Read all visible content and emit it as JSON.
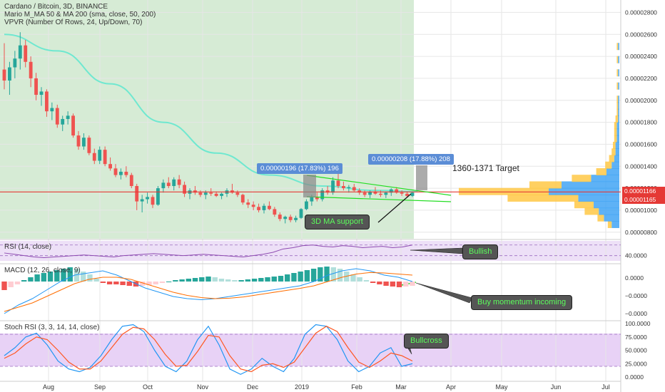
{
  "legend": {
    "main_title": "Cardano / Bitcoin, 3D, BINANCE",
    "ma_study": "Mario M_MA 50 & MA 200 (sma, close, 50, 200)",
    "vpvr_study": "VPVR (Number Of Rows, 24, Up/Down, 70)",
    "rsi_title": "RSI (14, close)",
    "macd_title": "MACD (12, 26, close, 9)",
    "stoch_title": "Stoch RSI (3, 3, 14, 14, close)"
  },
  "price_labels": {
    "current": "0.00001166",
    "second": "0.00001165"
  },
  "annotations": {
    "measure_left": "0.00000196 (17.83%) 196",
    "measure_right": "0.00000208 (17.88%) 208",
    "target": "1360-1371 Target",
    "ma_support": "3D MA support",
    "rsi_callout": "Bullish",
    "macd_callout": "Buy momentum incoming",
    "stoch_callout": "Bullcross"
  },
  "colors": {
    "up": "#26a69a",
    "down": "#ef5350",
    "ma50": "#6fe8d0",
    "price_line": "#e53935",
    "rsi_line": "#8e4bb1",
    "macd_line": "#2196f3",
    "signal_line": "#ff6d00",
    "stoch_k": "#2196f3",
    "stoch_d": "#ff5722",
    "vp_up": "#42a5f5",
    "vp_down": "#ffc845"
  },
  "chart_data": [
    {
      "type": "candlestick",
      "title": "Cardano / Bitcoin, 3D, BINANCE",
      "x_tick_labels": [
        "Aug",
        "Sep",
        "Oct",
        "Nov",
        "Dec",
        "2019",
        "Feb",
        "Mar",
        "Apr",
        "May",
        "Jun",
        "Jul"
      ],
      "y_tick_labels": [
        "0.00000800",
        "0.00001000",
        "0.00001200",
        "0.00001400",
        "0.00001600",
        "0.00001800",
        "0.00002000",
        "0.00002200",
        "0.00002400",
        "0.00002600",
        "0.00002800"
      ],
      "ylim": [
        7.4e-06,
        2.9e-05
      ],
      "candles": [
        [
          2.28,
          2.52,
          2.1,
          2.18
        ],
        [
          2.18,
          2.35,
          2.05,
          2.3
        ],
        [
          2.3,
          2.45,
          2.2,
          2.38
        ],
        [
          2.38,
          2.62,
          2.28,
          2.5
        ],
        [
          2.5,
          2.55,
          2.3,
          2.35
        ],
        [
          2.35,
          2.4,
          2.12,
          2.2
        ],
        [
          2.2,
          2.25,
          2.0,
          2.05
        ],
        [
          2.05,
          2.12,
          1.95,
          2.08
        ],
        [
          2.08,
          2.1,
          1.85,
          1.9
        ],
        [
          1.9,
          1.98,
          1.82,
          1.93
        ],
        [
          1.93,
          1.96,
          1.75,
          1.78
        ],
        [
          1.78,
          1.86,
          1.72,
          1.83
        ],
        [
          1.83,
          1.9,
          1.78,
          1.86
        ],
        [
          1.86,
          1.88,
          1.66,
          1.68
        ],
        [
          1.68,
          1.72,
          1.55,
          1.58
        ],
        [
          1.58,
          1.7,
          1.55,
          1.66
        ],
        [
          1.66,
          1.68,
          1.5,
          1.52
        ],
        [
          1.52,
          1.56,
          1.42,
          1.45
        ],
        [
          1.45,
          1.58,
          1.42,
          1.55
        ],
        [
          1.55,
          1.58,
          1.4,
          1.42
        ],
        [
          1.42,
          1.48,
          1.36,
          1.38
        ],
        [
          1.38,
          1.42,
          1.3,
          1.32
        ],
        [
          1.32,
          1.38,
          1.28,
          1.35
        ],
        [
          1.35,
          1.4,
          1.3,
          1.32
        ],
        [
          1.32,
          1.34,
          1.2,
          1.22
        ],
        [
          1.22,
          1.24,
          1.0,
          1.08
        ],
        [
          1.08,
          1.14,
          0.98,
          1.1
        ],
        [
          1.1,
          1.16,
          1.06,
          1.12
        ],
        [
          1.12,
          1.14,
          1.02,
          1.05
        ],
        [
          1.05,
          1.22,
          1.04,
          1.2
        ],
        [
          1.2,
          1.28,
          1.16,
          1.25
        ],
        [
          1.25,
          1.3,
          1.2,
          1.22
        ],
        [
          1.22,
          1.3,
          1.18,
          1.28
        ],
        [
          1.28,
          1.32,
          1.2,
          1.23
        ],
        [
          1.23,
          1.26,
          1.12,
          1.15
        ],
        [
          1.15,
          1.2,
          1.1,
          1.18
        ],
        [
          1.18,
          1.22,
          1.14,
          1.16
        ],
        [
          1.16,
          1.18,
          1.12,
          1.14
        ],
        [
          1.14,
          1.18,
          1.1,
          1.16
        ],
        [
          1.16,
          1.2,
          1.13,
          1.15
        ],
        [
          1.15,
          1.17,
          1.12,
          1.13
        ],
        [
          1.13,
          1.16,
          1.1,
          1.15
        ],
        [
          1.15,
          1.2,
          1.12,
          1.18
        ],
        [
          1.18,
          1.24,
          1.15,
          1.16
        ],
        [
          1.16,
          1.18,
          1.12,
          1.14
        ],
        [
          1.14,
          1.15,
          1.05,
          1.07
        ],
        [
          1.07,
          1.1,
          1.02,
          1.05
        ],
        [
          1.05,
          1.08,
          1.0,
          1.03
        ],
        [
          1.03,
          1.06,
          0.98,
          1.0
        ],
        [
          1.0,
          1.06,
          0.97,
          1.04
        ],
        [
          1.04,
          1.08,
          1.0,
          1.01
        ],
        [
          1.01,
          1.03,
          0.94,
          0.96
        ],
        [
          0.96,
          0.98,
          0.9,
          0.92
        ],
        [
          0.92,
          0.95,
          0.88,
          0.94
        ],
        [
          0.94,
          0.96,
          0.89,
          0.91
        ],
        [
          0.91,
          0.95,
          0.89,
          0.93
        ],
        [
          0.93,
          1.02,
          0.92,
          1.01
        ],
        [
          1.01,
          1.1,
          1.0,
          1.08
        ],
        [
          1.08,
          1.14,
          1.04,
          1.12
        ],
        [
          1.12,
          1.16,
          1.08,
          1.1
        ],
        [
          1.1,
          1.2,
          1.08,
          1.18
        ],
        [
          1.18,
          1.22,
          1.14,
          1.16
        ],
        [
          1.16,
          1.3,
          1.14,
          1.27
        ],
        [
          1.27,
          1.33,
          1.2,
          1.22
        ],
        [
          1.22,
          1.26,
          1.18,
          1.2
        ],
        [
          1.2,
          1.23,
          1.16,
          1.21
        ],
        [
          1.21,
          1.24,
          1.17,
          1.18
        ],
        [
          1.18,
          1.2,
          1.14,
          1.16
        ],
        [
          1.16,
          1.18,
          1.12,
          1.14
        ],
        [
          1.14,
          1.18,
          1.11,
          1.17
        ],
        [
          1.17,
          1.21,
          1.14,
          1.15
        ],
        [
          1.15,
          1.18,
          1.12,
          1.14
        ],
        [
          1.14,
          1.17,
          1.11,
          1.16
        ],
        [
          1.16,
          1.2,
          1.13,
          1.19
        ],
        [
          1.19,
          1.21,
          1.15,
          1.16
        ],
        [
          1.16,
          1.18,
          1.13,
          1.15
        ],
        [
          1.15,
          1.17,
          1.12,
          1.13
        ],
        [
          1.13,
          1.17,
          1.12,
          1.16
        ]
      ],
      "ma50": [
        [
          0,
          2.6
        ],
        [
          10,
          2.45
        ],
        [
          20,
          2.15
        ],
        [
          30,
          1.8
        ],
        [
          40,
          1.52
        ],
        [
          50,
          1.32
        ],
        [
          60,
          1.22
        ],
        [
          70,
          1.18
        ],
        [
          78,
          1.17
        ]
      ],
      "current_price": 1.166e-05,
      "volume_profile": [
        {
          "price": 8.7e-06,
          "up": 0.6,
          "down": 0.3
        },
        {
          "price": 9.3e-06,
          "up": 1.2,
          "down": 0.5
        },
        {
          "price": 9.9e-06,
          "up": 1.6,
          "down": 1.1
        },
        {
          "price": 1.05e-05,
          "up": 2.0,
          "down": 1.5
        },
        {
          "price": 1.11e-05,
          "up": 3.2,
          "down": 5.5
        },
        {
          "price": 1.17e-05,
          "up": 5.5,
          "down": 7.0
        },
        {
          "price": 1.23e-05,
          "up": 4.5,
          "down": 2.5
        },
        {
          "price": 1.29e-05,
          "up": 2.2,
          "down": 1.5
        },
        {
          "price": 1.35e-05,
          "up": 1.0,
          "down": 0.8
        },
        {
          "price": 1.41e-05,
          "up": 0.6,
          "down": 0.5
        },
        {
          "price": 1.47e-05,
          "up": 0.4,
          "down": 0.4
        },
        {
          "price": 1.53e-05,
          "up": 0.3,
          "down": 0.3
        },
        {
          "price": 1.59e-05,
          "up": 0.3,
          "down": 0.2
        },
        {
          "price": 1.65e-05,
          "up": 0.2,
          "down": 0.2
        },
        {
          "price": 1.71e-05,
          "up": 0.2,
          "down": 0.2
        },
        {
          "price": 1.77e-05,
          "up": 0.2,
          "down": 0.2
        },
        {
          "price": 1.83e-05,
          "up": 0.1,
          "down": 0.2
        },
        {
          "price": 1.89e-05,
          "up": 0.1,
          "down": 0.1
        },
        {
          "price": 1.95e-05,
          "up": 0.1,
          "down": 0.1
        },
        {
          "price": 2.01e-05,
          "up": 0.1,
          "down": 0.1
        },
        {
          "price": 2.13e-05,
          "up": 0.1,
          "down": 0.1
        },
        {
          "price": 2.25e-05,
          "up": 0.1,
          "down": 0.1
        },
        {
          "price": 2.37e-05,
          "up": 0.1,
          "down": 0.1
        },
        {
          "price": 2.49e-05,
          "up": 0.1,
          "down": 0.1
        }
      ]
    },
    {
      "type": "line",
      "title": "RSI (14, close)",
      "y_tick_labels": [
        "40.0000"
      ],
      "series": [
        {
          "values": [
            44,
            42,
            40,
            38,
            37,
            38,
            39,
            40,
            41,
            40,
            39,
            38,
            40,
            41,
            42,
            43,
            42,
            41,
            40,
            41,
            42,
            41,
            40,
            39,
            38,
            40,
            42,
            45,
            50,
            52,
            55,
            56,
            54,
            53,
            55,
            54,
            52,
            53,
            54,
            52,
            53,
            56
          ]
        }
      ]
    },
    {
      "type": "bar",
      "title": "MACD (12, 26, close, 9)",
      "y_tick_labels": [
        "0.0000",
        "−0.0000",
        "−0.0000"
      ],
      "histogram": [
        -0.6,
        -0.4,
        -0.2,
        0.1,
        0.3,
        0.5,
        0.6,
        0.7,
        0.8,
        0.9,
        1.0,
        0.9,
        0.7,
        0.5,
        0.2,
        -0.1,
        -0.2,
        -0.2,
        -0.25,
        -0.3,
        -0.35,
        -0.3,
        -0.25,
        -0.2,
        -0.1,
        0.0,
        0.1,
        0.15,
        0.2,
        0.25,
        0.3,
        0.35,
        0.3,
        0.2,
        0.15,
        0.1,
        0.1,
        0.15,
        0.2,
        0.25,
        0.3,
        0.35,
        0.4,
        0.5,
        0.6,
        0.7,
        0.8,
        0.9,
        1.0,
        1.05,
        1.0,
        0.9,
        0.7,
        0.5,
        0.3,
        0.1,
        -0.1,
        -0.2,
        -0.3,
        -0.35,
        -0.4,
        -0.35,
        -0.3
      ],
      "series": [
        {
          "values": [
            -1.0,
            -0.6,
            -0.3,
            0.1,
            0.5,
            0.8,
            0.9,
            1.0,
            0.8,
            0.5,
            0.2,
            0.0,
            -0.2,
            -0.3,
            -0.35,
            -0.3,
            -0.2,
            -0.1,
            0.0,
            0.1,
            0.2,
            0.3,
            0.5,
            0.8,
            1.0,
            1.1,
            1.0,
            0.8,
            0.7,
            0.5
          ]
        },
        {
          "values": [
            -0.9,
            -0.7,
            -0.5,
            -0.2,
            0.1,
            0.4,
            0.6,
            0.7,
            0.7,
            0.6,
            0.4,
            0.2,
            0.0,
            -0.15,
            -0.25,
            -0.3,
            -0.28,
            -0.22,
            -0.12,
            -0.02,
            0.08,
            0.18,
            0.3,
            0.5,
            0.7,
            0.85,
            0.92,
            0.9,
            0.85,
            0.8
          ]
        }
      ]
    },
    {
      "type": "line",
      "title": "Stoch RSI (3, 3, 14, 14, close)",
      "y_tick_labels": [
        "100.0000",
        "75.0000",
        "50.0000",
        "25.0000",
        "0.0000"
      ],
      "ylim": [
        0,
        100
      ],
      "series": [
        {
          "values": [
            40,
            55,
            75,
            82,
            60,
            30,
            15,
            10,
            18,
            40,
            70,
            95,
            98,
            85,
            50,
            20,
            10,
            30,
            70,
            95,
            60,
            15,
            5,
            15,
            35,
            20,
            10,
            35,
            80,
            98,
            95,
            70,
            30,
            10,
            20,
            45,
            55,
            20,
            25
          ]
        },
        {
          "values": [
            35,
            45,
            62,
            75,
            70,
            50,
            28,
            15,
            15,
            30,
            55,
            80,
            93,
            90,
            70,
            42,
            20,
            22,
            48,
            78,
            75,
            40,
            15,
            10,
            22,
            25,
            18,
            28,
            55,
            82,
            95,
            85,
            55,
            28,
            18,
            30,
            45,
            40,
            30
          ]
        }
      ]
    }
  ]
}
